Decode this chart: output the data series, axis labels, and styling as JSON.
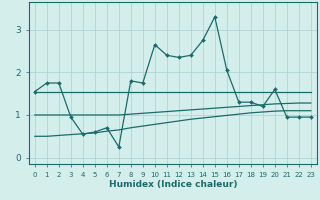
{
  "xlabel": "Humidex (Indice chaleur)",
  "bg_color": "#d4eeec",
  "line_color": "#1a6b6b",
  "grid_color": "#a8d0ce",
  "xlim": [
    -0.5,
    23.5
  ],
  "ylim": [
    -0.15,
    3.65
  ],
  "xticks": [
    0,
    1,
    2,
    3,
    4,
    5,
    6,
    7,
    8,
    9,
    10,
    11,
    12,
    13,
    14,
    15,
    16,
    17,
    18,
    19,
    20,
    21,
    22,
    23
  ],
  "yticks": [
    0,
    1,
    2,
    3
  ],
  "line1_y": [
    1.55,
    1.75,
    1.75,
    0.95,
    0.55,
    0.6,
    0.7,
    0.25,
    1.8,
    1.75,
    2.65,
    2.4,
    2.35,
    2.4,
    2.75,
    3.3,
    2.05,
    1.3,
    1.3,
    1.2,
    1.6,
    0.95,
    0.95,
    0.95
  ],
  "line2_y": [
    1.55,
    1.55,
    1.55,
    1.55,
    1.55,
    1.55,
    1.55,
    1.55,
    1.55,
    1.55,
    1.55,
    1.55,
    1.55,
    1.55,
    1.55,
    1.55,
    1.55,
    1.55,
    1.55,
    1.55,
    1.55,
    1.55,
    1.55,
    1.55
  ],
  "line3_y": [
    1.0,
    1.0,
    1.0,
    1.0,
    1.0,
    1.0,
    1.0,
    1.0,
    1.02,
    1.04,
    1.06,
    1.08,
    1.1,
    1.12,
    1.14,
    1.16,
    1.18,
    1.2,
    1.22,
    1.24,
    1.26,
    1.27,
    1.28,
    1.28
  ],
  "line4_y": [
    0.5,
    0.5,
    0.52,
    0.54,
    0.56,
    0.58,
    0.62,
    0.65,
    0.7,
    0.74,
    0.78,
    0.82,
    0.86,
    0.9,
    0.93,
    0.96,
    0.99,
    1.02,
    1.05,
    1.07,
    1.09,
    1.1,
    1.1,
    1.1
  ]
}
